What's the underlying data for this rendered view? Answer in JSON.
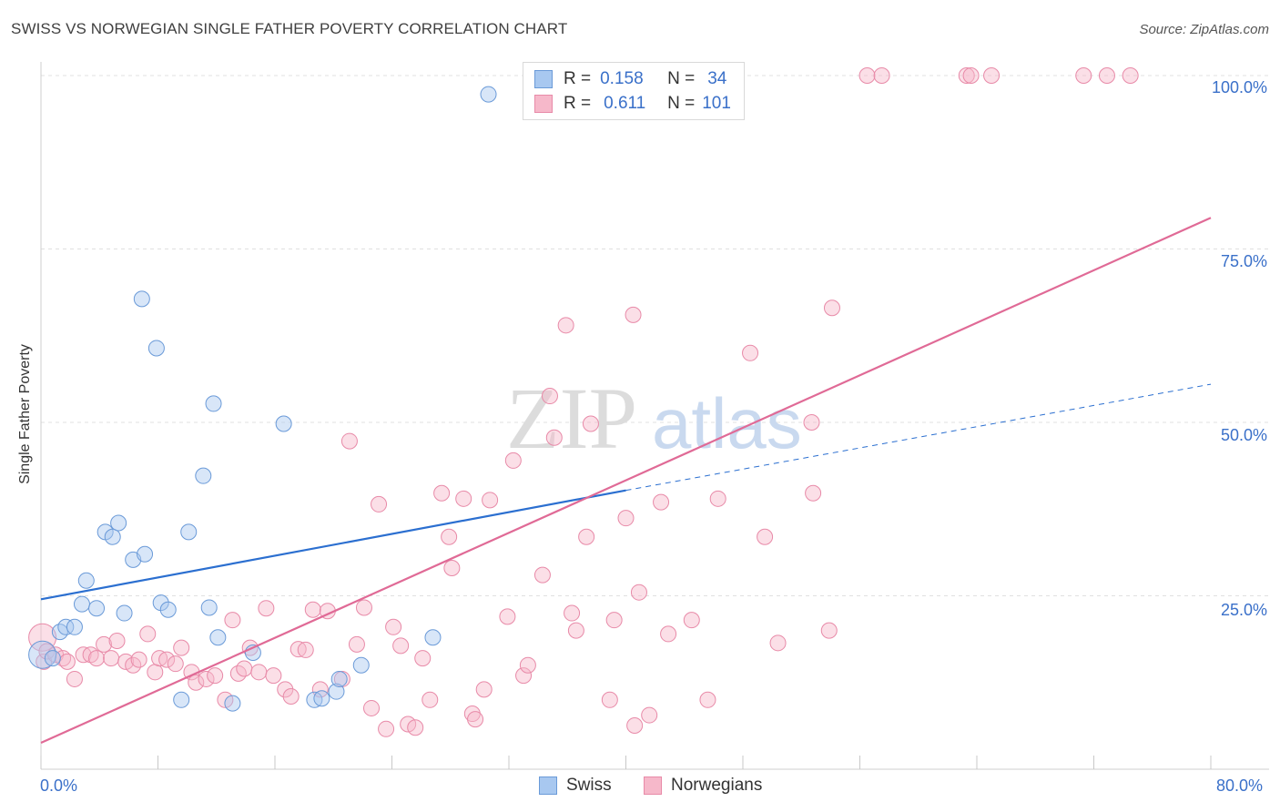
{
  "header": {
    "title": "SWISS VS NORWEGIAN SINGLE FATHER POVERTY CORRELATION CHART",
    "source": "Source: ZipAtlas.com"
  },
  "legend_top": {
    "swiss": {
      "r_label": "R =",
      "r_value": "0.158",
      "n_label": "N =",
      "n_value": "34"
    },
    "norwegians": {
      "r_label": "R =",
      "r_value": "0.611",
      "n_label": "N =",
      "n_value": "101"
    }
  },
  "legend_bottom": {
    "swiss": "Swiss",
    "norwegians": "Norwegians"
  },
  "axis_text": {
    "ylabel": "Single Father Poverty",
    "x_min": "0.0%",
    "x_max": "80.0%",
    "y_ticks": [
      "100.0%",
      "75.0%",
      "50.0%",
      "25.0%"
    ]
  },
  "watermark": {
    "zip": "ZIP",
    "atlas": "atlas"
  },
  "colors": {
    "swiss_fill": "#a8c8f0",
    "swiss_stroke": "#6a9ad8",
    "swiss_line": "#2b6fd0",
    "norw_fill": "#f6b8ca",
    "norw_stroke": "#e88aa8",
    "norw_line": "#e06a96",
    "tick_text": "#3a70c9",
    "grid": "#e0e0e0"
  },
  "chart_data": {
    "type": "scatter",
    "title": "SWISS VS NORWEGIAN SINGLE FATHER POVERTY CORRELATION CHART",
    "xlabel": "",
    "ylabel": "Single Father Poverty",
    "xlim": [
      0,
      80
    ],
    "ylim": [
      0,
      100
    ],
    "y_ticks": [
      25,
      50,
      75,
      100
    ],
    "grid": true,
    "legend_placement": "top-center",
    "series": [
      {
        "name": "Swiss",
        "R": 0.158,
        "N": 34,
        "trend": {
          "x": [
            0,
            40
          ],
          "y": [
            24.5,
            40.2
          ],
          "dashed_to": [
            80,
            55.5
          ]
        },
        "points": [
          [
            0.1,
            16.5
          ],
          [
            0.8,
            16
          ],
          [
            1.3,
            19.8
          ],
          [
            1.7,
            20.5
          ],
          [
            2.3,
            20.5
          ],
          [
            2.8,
            23.8
          ],
          [
            3.1,
            27.2
          ],
          [
            3.8,
            23.2
          ],
          [
            4.4,
            34.2
          ],
          [
            4.9,
            33.5
          ],
          [
            5.3,
            35.5
          ],
          [
            5.7,
            22.5
          ],
          [
            6.3,
            30.2
          ],
          [
            7.1,
            31.0
          ],
          [
            6.9,
            67.8
          ],
          [
            7.9,
            60.7
          ],
          [
            8.2,
            24.0
          ],
          [
            8.7,
            23.0
          ],
          [
            9.6,
            10.0
          ],
          [
            10.1,
            34.2
          ],
          [
            11.1,
            42.3
          ],
          [
            11.5,
            23.3
          ],
          [
            11.8,
            52.7
          ],
          [
            12.1,
            19.0
          ],
          [
            13.1,
            9.5
          ],
          [
            14.5,
            16.8
          ],
          [
            16.6,
            49.8
          ],
          [
            18.7,
            10.0
          ],
          [
            19.2,
            10.2
          ],
          [
            20.2,
            11.2
          ],
          [
            20.4,
            13.0
          ],
          [
            21.9,
            15.0
          ],
          [
            26.8,
            19.0
          ],
          [
            30.6,
            97.3
          ]
        ]
      },
      {
        "name": "Norwegians",
        "R": 0.611,
        "N": 101,
        "trend": {
          "x": [
            0,
            80
          ],
          "y": [
            3.8,
            79.5
          ]
        },
        "points": [
          [
            0.1,
            19.0
          ],
          [
            0.2,
            15.5
          ],
          [
            0.4,
            17.0
          ],
          [
            1.0,
            16.5
          ],
          [
            1.5,
            16.0
          ],
          [
            1.8,
            15.5
          ],
          [
            2.3,
            13.0
          ],
          [
            2.9,
            16.5
          ],
          [
            3.4,
            16.5
          ],
          [
            3.8,
            16.0
          ],
          [
            4.3,
            18.0
          ],
          [
            4.8,
            16.0
          ],
          [
            5.2,
            18.5
          ],
          [
            5.8,
            15.5
          ],
          [
            6.3,
            15.0
          ],
          [
            6.7,
            15.8
          ],
          [
            7.3,
            19.5
          ],
          [
            7.8,
            14.0
          ],
          [
            8.1,
            16.0
          ],
          [
            8.6,
            15.8
          ],
          [
            9.2,
            15.2
          ],
          [
            9.6,
            17.5
          ],
          [
            10.3,
            14.0
          ],
          [
            10.6,
            12.5
          ],
          [
            11.3,
            13.0
          ],
          [
            11.9,
            13.5
          ],
          [
            12.6,
            10.0
          ],
          [
            13.1,
            21.5
          ],
          [
            13.5,
            13.8
          ],
          [
            13.9,
            14.5
          ],
          [
            14.3,
            17.5
          ],
          [
            14.9,
            14.0
          ],
          [
            15.4,
            23.2
          ],
          [
            15.9,
            13.5
          ],
          [
            16.7,
            11.5
          ],
          [
            17.1,
            10.5
          ],
          [
            17.6,
            17.3
          ],
          [
            18.1,
            17.2
          ],
          [
            18.6,
            23.0
          ],
          [
            19.1,
            11.5
          ],
          [
            19.6,
            22.8
          ],
          [
            20.6,
            13.0
          ],
          [
            21.1,
            47.3
          ],
          [
            21.6,
            18.0
          ],
          [
            22.1,
            23.3
          ],
          [
            22.6,
            8.8
          ],
          [
            23.1,
            38.2
          ],
          [
            23.6,
            5.8
          ],
          [
            24.1,
            20.5
          ],
          [
            24.6,
            17.8
          ],
          [
            25.1,
            6.5
          ],
          [
            25.6,
            6.0
          ],
          [
            26.1,
            16.0
          ],
          [
            26.6,
            10.0
          ],
          [
            27.4,
            39.8
          ],
          [
            27.9,
            33.5
          ],
          [
            28.1,
            29.0
          ],
          [
            28.9,
            39.0
          ],
          [
            29.5,
            8.0
          ],
          [
            29.7,
            7.2
          ],
          [
            30.3,
            11.5
          ],
          [
            30.7,
            38.8
          ],
          [
            31.9,
            22.0
          ],
          [
            32.3,
            44.5
          ],
          [
            33.0,
            13.5
          ],
          [
            33.3,
            15.0
          ],
          [
            34.3,
            28.0
          ],
          [
            34.8,
            53.8
          ],
          [
            35.1,
            47.8
          ],
          [
            35.9,
            64.0
          ],
          [
            36.3,
            22.5
          ],
          [
            36.6,
            20.0
          ],
          [
            37.3,
            33.5
          ],
          [
            37.6,
            49.8
          ],
          [
            38.9,
            10.0
          ],
          [
            39.2,
            21.5
          ],
          [
            40.0,
            36.2
          ],
          [
            40.5,
            65.5
          ],
          [
            40.6,
            6.3
          ],
          [
            40.9,
            25.5
          ],
          [
            41.6,
            7.8
          ],
          [
            42.4,
            38.5
          ],
          [
            42.9,
            19.5
          ],
          [
            44.5,
            21.5
          ],
          [
            45.6,
            10.0
          ],
          [
            46.3,
            39.0
          ],
          [
            48.5,
            60.0
          ],
          [
            49.5,
            33.5
          ],
          [
            50.4,
            18.2
          ],
          [
            52.7,
            50.0
          ],
          [
            52.8,
            39.8
          ],
          [
            53.9,
            20.0
          ],
          [
            54.1,
            66.5
          ],
          [
            56.5,
            100.0
          ],
          [
            57.5,
            100.0
          ],
          [
            63.3,
            100.0
          ],
          [
            63.6,
            100.0
          ],
          [
            65.0,
            100.0
          ],
          [
            71.3,
            100.0
          ],
          [
            72.9,
            100.0
          ],
          [
            74.5,
            100.0
          ]
        ]
      }
    ]
  }
}
